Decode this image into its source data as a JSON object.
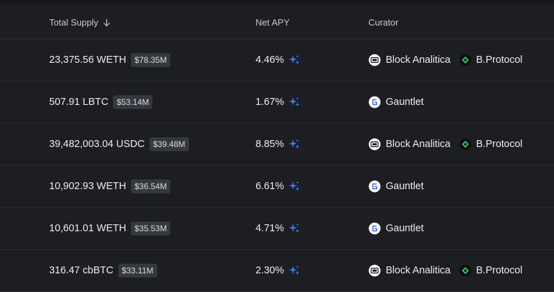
{
  "header": {
    "total_supply": "Total Supply",
    "net_apy": "Net APY",
    "curator": "Curator"
  },
  "rows": [
    {
      "amount": "23,375.56 WETH",
      "usd": "$78.35M",
      "apy": "4.46%",
      "curators": [
        "Block Analitica",
        "B.Protocol"
      ]
    },
    {
      "amount": "507.91 LBTC",
      "usd": "$53.14M",
      "apy": "1.67%",
      "curators": [
        "Gauntlet"
      ]
    },
    {
      "amount": "39,482,003.04 USDC",
      "usd": "$39.48M",
      "apy": "8.85%",
      "curators": [
        "Block Analitica",
        "B.Protocol"
      ]
    },
    {
      "amount": "10,902.93 WETH",
      "usd": "$36.54M",
      "apy": "6.61%",
      "curators": [
        "Gauntlet"
      ]
    },
    {
      "amount": "10,601.01 WETH",
      "usd": "$35.53M",
      "apy": "4.71%",
      "curators": [
        "Gauntlet"
      ]
    },
    {
      "amount": "316.47 cbBTC",
      "usd": "$33.11M",
      "apy": "2.30%",
      "curators": [
        "Block Analitica",
        "B.Protocol"
      ]
    }
  ],
  "icons": {
    "sort": "arrow-down-icon",
    "rewards": "sparkle-icon",
    "block_analitica": "block-analitica-logo-icon",
    "b_protocol": "b-protocol-logo-icon",
    "gauntlet": "gauntlet-logo-icon"
  },
  "colors": {
    "background": "#1c1e22",
    "divider": "#2b2e33",
    "badge": "#35383e",
    "sparkle": "#3b7bff",
    "b_protocol_green": "#2fd36a"
  }
}
